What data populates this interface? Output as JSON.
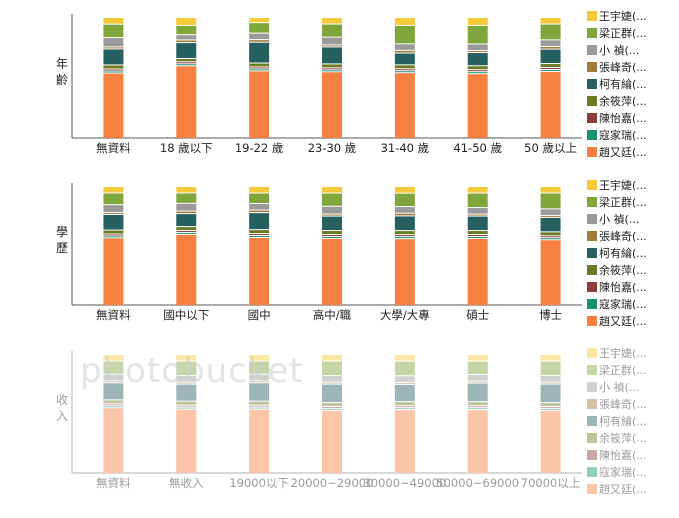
{
  "chart_data": [
    {
      "type": "bar",
      "stacked": true,
      "ylabel": "年齡",
      "categories": [
        "無資料",
        "18 歲以下",
        "19-22 歲",
        "23-30 歲",
        "31-40 歲",
        "41-50 歲",
        "50 歲以上"
      ],
      "legend": [
        "王宇婕(...",
        "梁正群(...",
        "小 禎(...",
        "張峰奇(...",
        "柯有綸(...",
        "余筱萍(...",
        "陳怡嘉(...",
        "寇家瑞(...",
        "趙又廷(..."
      ],
      "legend_position": "right",
      "series": [
        {
          "name": "趙又廷",
          "values": [
            49,
            55,
            52,
            51,
            50,
            49,
            51
          ]
        },
        {
          "name": "寇家瑞",
          "values": [
            1.5,
            1.5,
            1.5,
            1.5,
            1.5,
            1.5,
            1.5
          ]
        },
        {
          "name": "陳怡嘉",
          "values": [
            1.5,
            1.5,
            1.5,
            1.5,
            1.5,
            1.5,
            1.5
          ]
        },
        {
          "name": "余筱萍",
          "values": [
            3,
            2.5,
            3,
            3,
            3,
            3,
            3
          ]
        },
        {
          "name": "柯有綸",
          "values": [
            12,
            12,
            16,
            13,
            9,
            10,
            11
          ]
        },
        {
          "name": "張峰奇",
          "values": [
            1.5,
            2,
            2,
            1.5,
            2,
            1.5,
            2
          ]
        },
        {
          "name": "小 禎",
          "values": [
            7,
            4,
            5,
            6,
            5,
            5,
            5
          ]
        },
        {
          "name": "梁正群",
          "values": [
            10,
            7,
            8,
            10,
            14,
            14,
            12
          ]
        },
        {
          "name": "王宇婕",
          "values": [
            5,
            6,
            4,
            5,
            6,
            6,
            5
          ]
        }
      ]
    },
    {
      "type": "bar",
      "stacked": true,
      "ylabel": "學歷",
      "categories": [
        "無資料",
        "國中以下",
        "國中",
        "高中/職",
        "大學/大專",
        "碩士",
        "博士"
      ],
      "legend": [
        "王宇婕(...",
        "梁正群(...",
        "小 禎(...",
        "張峰奇(...",
        "柯有綸(...",
        "余筱萍(...",
        "陳怡嘉(...",
        "寇家瑞(...",
        "趙又廷(..."
      ],
      "legend_position": "right",
      "series": [
        {
          "name": "趙又廷",
          "values": [
            52,
            55,
            52,
            51,
            50,
            51,
            50
          ]
        },
        {
          "name": "寇家瑞",
          "values": [
            1.5,
            1.5,
            1.5,
            1.5,
            1.5,
            1.5,
            1.5
          ]
        },
        {
          "name": "陳怡嘉",
          "values": [
            1.5,
            1.5,
            1.5,
            1.5,
            1.5,
            1.5,
            1.5
          ]
        },
        {
          "name": "余筱萍",
          "values": [
            3,
            3,
            3,
            3,
            3,
            3,
            3
          ]
        },
        {
          "name": "柯有綸",
          "values": [
            12,
            10,
            13,
            11,
            11,
            11,
            11
          ]
        },
        {
          "name": "張峰奇",
          "values": [
            1.5,
            2,
            2,
            1.5,
            2,
            1.5,
            1.5
          ]
        },
        {
          "name": "小 禎",
          "values": [
            6,
            6,
            5,
            6,
            5,
            5,
            5
          ]
        },
        {
          "name": "梁正群",
          "values": [
            9,
            8,
            8,
            10,
            10,
            11,
            12
          ]
        },
        {
          "name": "王宇婕",
          "values": [
            5,
            5,
            5,
            5,
            5,
            5,
            5
          ]
        }
      ]
    },
    {
      "type": "bar",
      "stacked": true,
      "ylabel": "收入",
      "categories": [
        "無資料",
        "無收入",
        "19000以下",
        "20000~29000",
        "30000~49000",
        "50000~69000",
        "70000以上"
      ],
      "legend": [
        "王宇婕(...",
        "梁正群(...",
        "小 禎(...",
        "張峰奇(...",
        "柯有綸(...",
        "余筱萍(...",
        "陳怡嘉(...",
        "寇家瑞(...",
        "趙又廷(..."
      ],
      "legend_position": "right",
      "series": [
        {
          "name": "趙又廷",
          "values": [
            50,
            49,
            49,
            48,
            48,
            48,
            48
          ]
        },
        {
          "name": "寇家瑞",
          "values": [
            1.5,
            1.5,
            1.5,
            1.5,
            1.5,
            1.5,
            1.5
          ]
        },
        {
          "name": "陳怡嘉",
          "values": [
            1.5,
            1.5,
            1.5,
            1.5,
            1.5,
            1.5,
            1.5
          ]
        },
        {
          "name": "余筱萍",
          "values": [
            3,
            3,
            3,
            3,
            3,
            3,
            3
          ]
        },
        {
          "name": "柯有綸",
          "values": [
            13,
            13,
            14,
            14,
            13,
            14,
            14
          ]
        },
        {
          "name": "張峰奇",
          "values": [
            1.5,
            1.5,
            1.5,
            1.5,
            1.5,
            1.5,
            1.5
          ]
        },
        {
          "name": "小 禎",
          "values": [
            5,
            5,
            5,
            5,
            5,
            5,
            5
          ]
        },
        {
          "name": "梁正群",
          "values": [
            10,
            11,
            10,
            11,
            11,
            10,
            11
          ]
        },
        {
          "name": "王宇婕",
          "values": [
            5,
            5,
            5,
            5,
            5,
            5,
            5
          ]
        }
      ]
    }
  ],
  "colors": {
    "王宇婕": "#f4c93a",
    "梁正群": "#7ea63a",
    "小 禎": "#9a9a9a",
    "張峰奇": "#a07a3c",
    "柯有綸": "#266061",
    "余筱萍": "#6b7b23",
    "陳怡嘉": "#8a3d3a",
    "寇家瑞": "#149070",
    "趙又廷": "#f58040",
    "axis": "#555555"
  },
  "watermark": "photobucket"
}
